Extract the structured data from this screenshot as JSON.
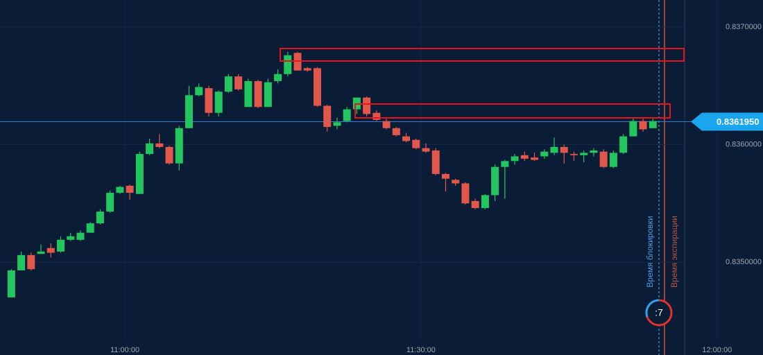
{
  "chart_data": {
    "type": "candlestick",
    "up_color": "#22c55e",
    "down_color": "#e2574c",
    "x": [
      "10:48:00",
      "10:49:00",
      "10:50:00",
      "10:51:00",
      "10:52:00",
      "10:53:00",
      "10:54:00",
      "10:55:00",
      "10:56:00",
      "10:57:00",
      "10:58:00",
      "10:59:00",
      "11:00:00",
      "11:01:00",
      "11:02:00",
      "11:03:00",
      "11:04:00",
      "11:05:00",
      "11:06:00",
      "11:07:00",
      "11:08:00",
      "11:09:00",
      "11:10:00",
      "11:11:00",
      "11:12:00",
      "11:13:00",
      "11:14:00",
      "11:15:00",
      "11:16:00",
      "11:17:00",
      "11:18:00",
      "11:19:00",
      "11:20:00",
      "11:21:00",
      "11:22:00",
      "11:23:00",
      "11:24:00",
      "11:25:00",
      "11:26:00",
      "11:27:00",
      "11:28:00",
      "11:29:00",
      "11:30:00",
      "11:31:00",
      "11:32:00",
      "11:33:00",
      "11:34:00",
      "11:35:00",
      "11:36:00",
      "11:37:00",
      "11:38:00",
      "11:39:00",
      "11:40:00",
      "11:41:00",
      "11:42:00",
      "11:43:00",
      "11:44:00",
      "11:45:00",
      "11:46:00",
      "11:47:00",
      "11:48:00",
      "11:49:00",
      "11:50:00",
      "11:51:00",
      "11:52:00",
      "11:53:00"
    ],
    "open": [
      0.8347,
      0.83493,
      0.83506,
      0.83507,
      0.83512,
      0.83509,
      0.83519,
      0.83519,
      0.83525,
      0.83533,
      0.83543,
      0.83559,
      0.83565,
      0.83558,
      0.83592,
      0.83601,
      0.83598,
      0.83584,
      0.83614,
      0.83642,
      0.83648,
      0.83627,
      0.83645,
      0.83658,
      0.83632,
      0.83654,
      0.83632,
      0.83654,
      0.8366,
      0.83678,
      0.83665,
      0.83665,
      0.83633,
      0.83616,
      0.8362,
      0.8363,
      0.8364,
      0.83627,
      0.8362,
      0.83614,
      0.83607,
      0.83604,
      0.83597,
      0.83595,
      0.83575,
      0.8357,
      0.83567,
      0.83552,
      0.83546,
      0.83557,
      0.83581,
      0.83586,
      0.83591,
      0.83589,
      0.8359,
      0.83593,
      0.83598,
      0.83592,
      0.83591,
      0.83593,
      0.83594,
      0.83581,
      0.83593,
      0.83607,
      0.8362,
      0.83614
    ],
    "high": [
      0.83494,
      0.83509,
      0.83508,
      0.83515,
      0.83516,
      0.83522,
      0.83525,
      0.83527,
      0.83534,
      0.83545,
      0.83561,
      0.83565,
      0.83566,
      0.83594,
      0.83605,
      0.83609,
      0.83599,
      0.83616,
      0.8365,
      0.83652,
      0.8365,
      0.83646,
      0.8366,
      0.8366,
      0.83656,
      0.83655,
      0.83656,
      0.83664,
      0.83679,
      0.83679,
      0.83666,
      0.83666,
      0.83634,
      0.83623,
      0.83632,
      0.8364,
      0.83641,
      0.83629,
      0.83622,
      0.83615,
      0.8361,
      0.83605,
      0.83601,
      0.83597,
      0.83576,
      0.83571,
      0.83568,
      0.83554,
      0.83558,
      0.83583,
      0.83587,
      0.83592,
      0.83594,
      0.83593,
      0.83596,
      0.83606,
      0.836,
      0.83594,
      0.83595,
      0.83597,
      0.83596,
      0.83595,
      0.83609,
      0.83622,
      0.83622,
      0.83622
    ],
    "low": [
      0.8347,
      0.83493,
      0.83493,
      0.83507,
      0.83504,
      0.83508,
      0.83518,
      0.83518,
      0.83525,
      0.83532,
      0.83542,
      0.83558,
      0.83553,
      0.83558,
      0.83591,
      0.83597,
      0.83583,
      0.83578,
      0.83614,
      0.83641,
      0.83624,
      0.83624,
      0.83644,
      0.83646,
      0.83632,
      0.83631,
      0.83632,
      0.83652,
      0.83658,
      0.83663,
      0.83662,
      0.83632,
      0.83611,
      0.83613,
      0.83619,
      0.83626,
      0.83624,
      0.8362,
      0.83613,
      0.83607,
      0.83602,
      0.83596,
      0.83593,
      0.83574,
      0.8356,
      0.83565,
      0.83549,
      0.83545,
      0.83545,
      0.83552,
      0.83554,
      0.83583,
      0.83586,
      0.83586,
      0.83588,
      0.83591,
      0.83584,
      0.83586,
      0.83585,
      0.8359,
      0.8358,
      0.8358,
      0.83592,
      0.83607,
      0.83611,
      0.83614
    ],
    "close": [
      0.83493,
      0.83506,
      0.83494,
      0.83509,
      0.83508,
      0.83519,
      0.83522,
      0.83525,
      0.83533,
      0.83543,
      0.83559,
      0.83564,
      0.83559,
      0.83592,
      0.83601,
      0.83598,
      0.83584,
      0.83614,
      0.83642,
      0.83649,
      0.83627,
      0.83645,
      0.83658,
      0.83647,
      0.83654,
      0.83632,
      0.83653,
      0.8366,
      0.83676,
      0.83663,
      0.83663,
      0.83633,
      0.83615,
      0.83619,
      0.8363,
      0.8364,
      0.83626,
      0.83621,
      0.83614,
      0.83608,
      0.83603,
      0.83597,
      0.83594,
      0.83575,
      0.83571,
      0.83567,
      0.8355,
      0.83546,
      0.83557,
      0.83581,
      0.83586,
      0.8359,
      0.83588,
      0.83587,
      0.83594,
      0.83598,
      0.83593,
      0.83591,
      0.83593,
      0.83595,
      0.83581,
      0.83593,
      0.83607,
      0.8362,
      0.83613,
      0.8362
    ],
    "ylim": [
      0.83421,
      0.83723
    ],
    "yticks": [
      {
        "value": 0.837,
        "label": "0.8370000"
      },
      {
        "value": 0.836,
        "label": "0.8360000"
      },
      {
        "value": 0.835,
        "label": "0.8350000"
      }
    ],
    "xticks": [
      "11:00:00",
      "11:30:00",
      "12:00:00"
    ],
    "current_price": {
      "value": 0.836195,
      "label": "0.8361950"
    },
    "block_label": "Время блокировки",
    "expiry_label": "Время экспирации",
    "timer": ":7"
  }
}
